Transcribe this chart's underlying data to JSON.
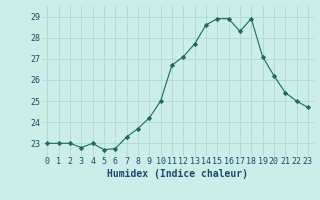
{
  "x": [
    0,
    1,
    2,
    3,
    4,
    5,
    6,
    7,
    8,
    9,
    10,
    11,
    12,
    13,
    14,
    15,
    16,
    17,
    18,
    19,
    20,
    21,
    22,
    23
  ],
  "y": [
    23.0,
    23.0,
    23.0,
    22.8,
    23.0,
    22.7,
    22.75,
    23.3,
    23.7,
    24.2,
    25.0,
    26.7,
    27.1,
    27.7,
    28.6,
    28.9,
    28.9,
    28.3,
    28.9,
    27.1,
    26.2,
    25.4,
    25.0,
    24.7
  ],
  "line_color": "#1a6b5e",
  "marker": "D",
  "marker_size": 2.2,
  "bg_color": "#cceee8",
  "grid_color": "#aad4cc",
  "ylabel_ticks": [
    23,
    24,
    25,
    26,
    27,
    28,
    29
  ],
  "xlabel_ticks": [
    0,
    1,
    2,
    3,
    4,
    5,
    6,
    7,
    8,
    9,
    10,
    11,
    12,
    13,
    14,
    15,
    16,
    17,
    18,
    19,
    20,
    21,
    22,
    23
  ],
  "xlabel_labels": [
    "0",
    "1",
    "2",
    "3",
    "4",
    "5",
    "6",
    "7",
    "8",
    "9",
    "10",
    "11",
    "12",
    "13",
    "14",
    "15",
    "16",
    "17",
    "18",
    "19",
    "20",
    "21",
    "22",
    "23"
  ],
  "ylim": [
    22.4,
    29.5
  ],
  "xlim": [
    -0.5,
    23.5
  ],
  "xlabel": "Humidex (Indice chaleur)",
  "xlabel_fontsize": 7,
  "tick_fontsize": 6,
  "axis_text_color": "#1a4a6b"
}
